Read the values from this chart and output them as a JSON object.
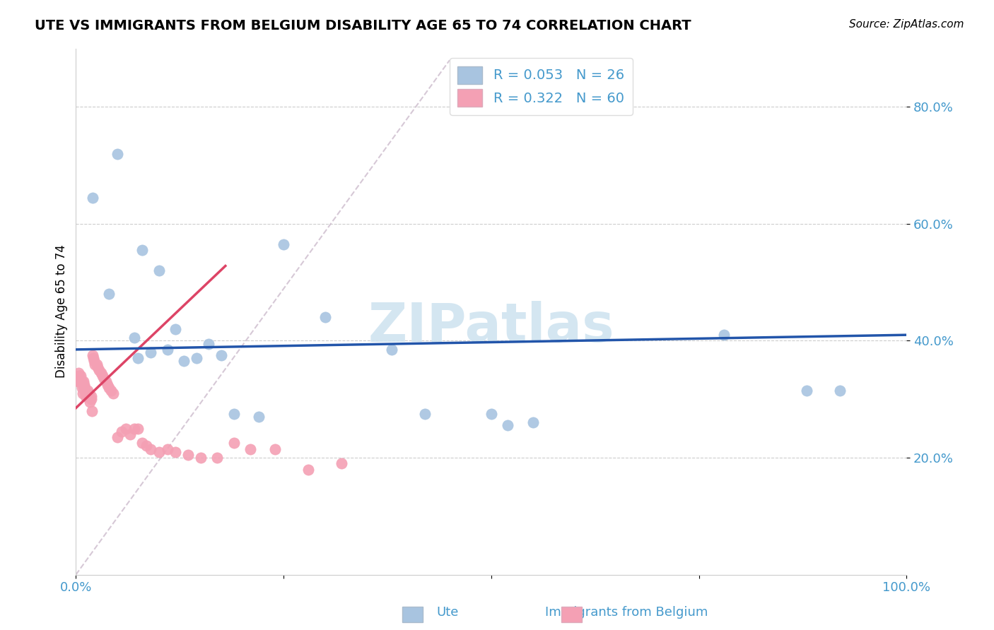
{
  "title": "UTE VS IMMIGRANTS FROM BELGIUM DISABILITY AGE 65 TO 74 CORRELATION CHART",
  "source": "Source: ZipAtlas.com",
  "ylabel": "Disability Age 65 to 74",
  "r_ute": 0.053,
  "n_ute": 26,
  "r_belgium": 0.322,
  "n_belgium": 60,
  "ute_color": "#a8c4e0",
  "ute_edge_color": "#7aaacf",
  "belgium_color": "#f4a0b4",
  "belgium_edge_color": "#e07090",
  "ute_line_color": "#2255aa",
  "belgium_line_color": "#dd4466",
  "diag_line_color": "#ccbbcc",
  "xlim": [
    0.0,
    1.0
  ],
  "ylim": [
    0.0,
    0.9
  ],
  "xticks": [
    0.0,
    0.25,
    0.5,
    0.75,
    1.0
  ],
  "xticklabels": [
    "0.0%",
    "",
    "",
    "",
    "100.0%"
  ],
  "ytick_positions": [
    0.2,
    0.4,
    0.6,
    0.8
  ],
  "ytick_labels": [
    "20.0%",
    "40.0%",
    "60.0%",
    "80.0%"
  ],
  "ute_x": [
    0.02,
    0.04,
    0.05,
    0.07,
    0.075,
    0.08,
    0.09,
    0.1,
    0.11,
    0.12,
    0.13,
    0.145,
    0.16,
    0.175,
    0.19,
    0.22,
    0.25,
    0.3,
    0.38,
    0.42,
    0.5,
    0.52,
    0.55,
    0.78,
    0.88,
    0.92
  ],
  "ute_y": [
    0.645,
    0.48,
    0.72,
    0.405,
    0.37,
    0.555,
    0.38,
    0.52,
    0.385,
    0.42,
    0.365,
    0.37,
    0.395,
    0.375,
    0.275,
    0.27,
    0.565,
    0.44,
    0.385,
    0.275,
    0.275,
    0.255,
    0.26,
    0.41,
    0.315,
    0.315
  ],
  "belgium_x": [
    0.002,
    0.003,
    0.004,
    0.005,
    0.006,
    0.007,
    0.007,
    0.008,
    0.009,
    0.009,
    0.01,
    0.01,
    0.011,
    0.011,
    0.012,
    0.012,
    0.013,
    0.014,
    0.015,
    0.016,
    0.016,
    0.017,
    0.018,
    0.018,
    0.019,
    0.02,
    0.021,
    0.022,
    0.023,
    0.025,
    0.026,
    0.028,
    0.03,
    0.032,
    0.034,
    0.036,
    0.038,
    0.04,
    0.042,
    0.045,
    0.05,
    0.055,
    0.06,
    0.065,
    0.07,
    0.075,
    0.08,
    0.085,
    0.09,
    0.1,
    0.11,
    0.12,
    0.135,
    0.15,
    0.17,
    0.19,
    0.21,
    0.24,
    0.28,
    0.32
  ],
  "belgium_y": [
    0.33,
    0.345,
    0.34,
    0.33,
    0.34,
    0.33,
    0.32,
    0.31,
    0.325,
    0.33,
    0.325,
    0.32,
    0.32,
    0.315,
    0.31,
    0.305,
    0.31,
    0.315,
    0.305,
    0.305,
    0.31,
    0.295,
    0.3,
    0.305,
    0.28,
    0.375,
    0.37,
    0.365,
    0.36,
    0.36,
    0.355,
    0.35,
    0.345,
    0.34,
    0.335,
    0.33,
    0.325,
    0.32,
    0.315,
    0.31,
    0.235,
    0.245,
    0.25,
    0.24,
    0.25,
    0.25,
    0.225,
    0.22,
    0.215,
    0.21,
    0.215,
    0.21,
    0.205,
    0.2,
    0.2,
    0.225,
    0.215,
    0.215,
    0.18,
    0.19
  ],
  "background_color": "#ffffff",
  "grid_color": "#cccccc",
  "tick_label_color": "#4499cc",
  "legend_text_color": "#4499cc",
  "watermark_color": "#d0e4f0",
  "title_fontsize": 14,
  "axis_fontsize": 12,
  "tick_fontsize": 13,
  "legend_fontsize": 14,
  "marker_size": 120
}
